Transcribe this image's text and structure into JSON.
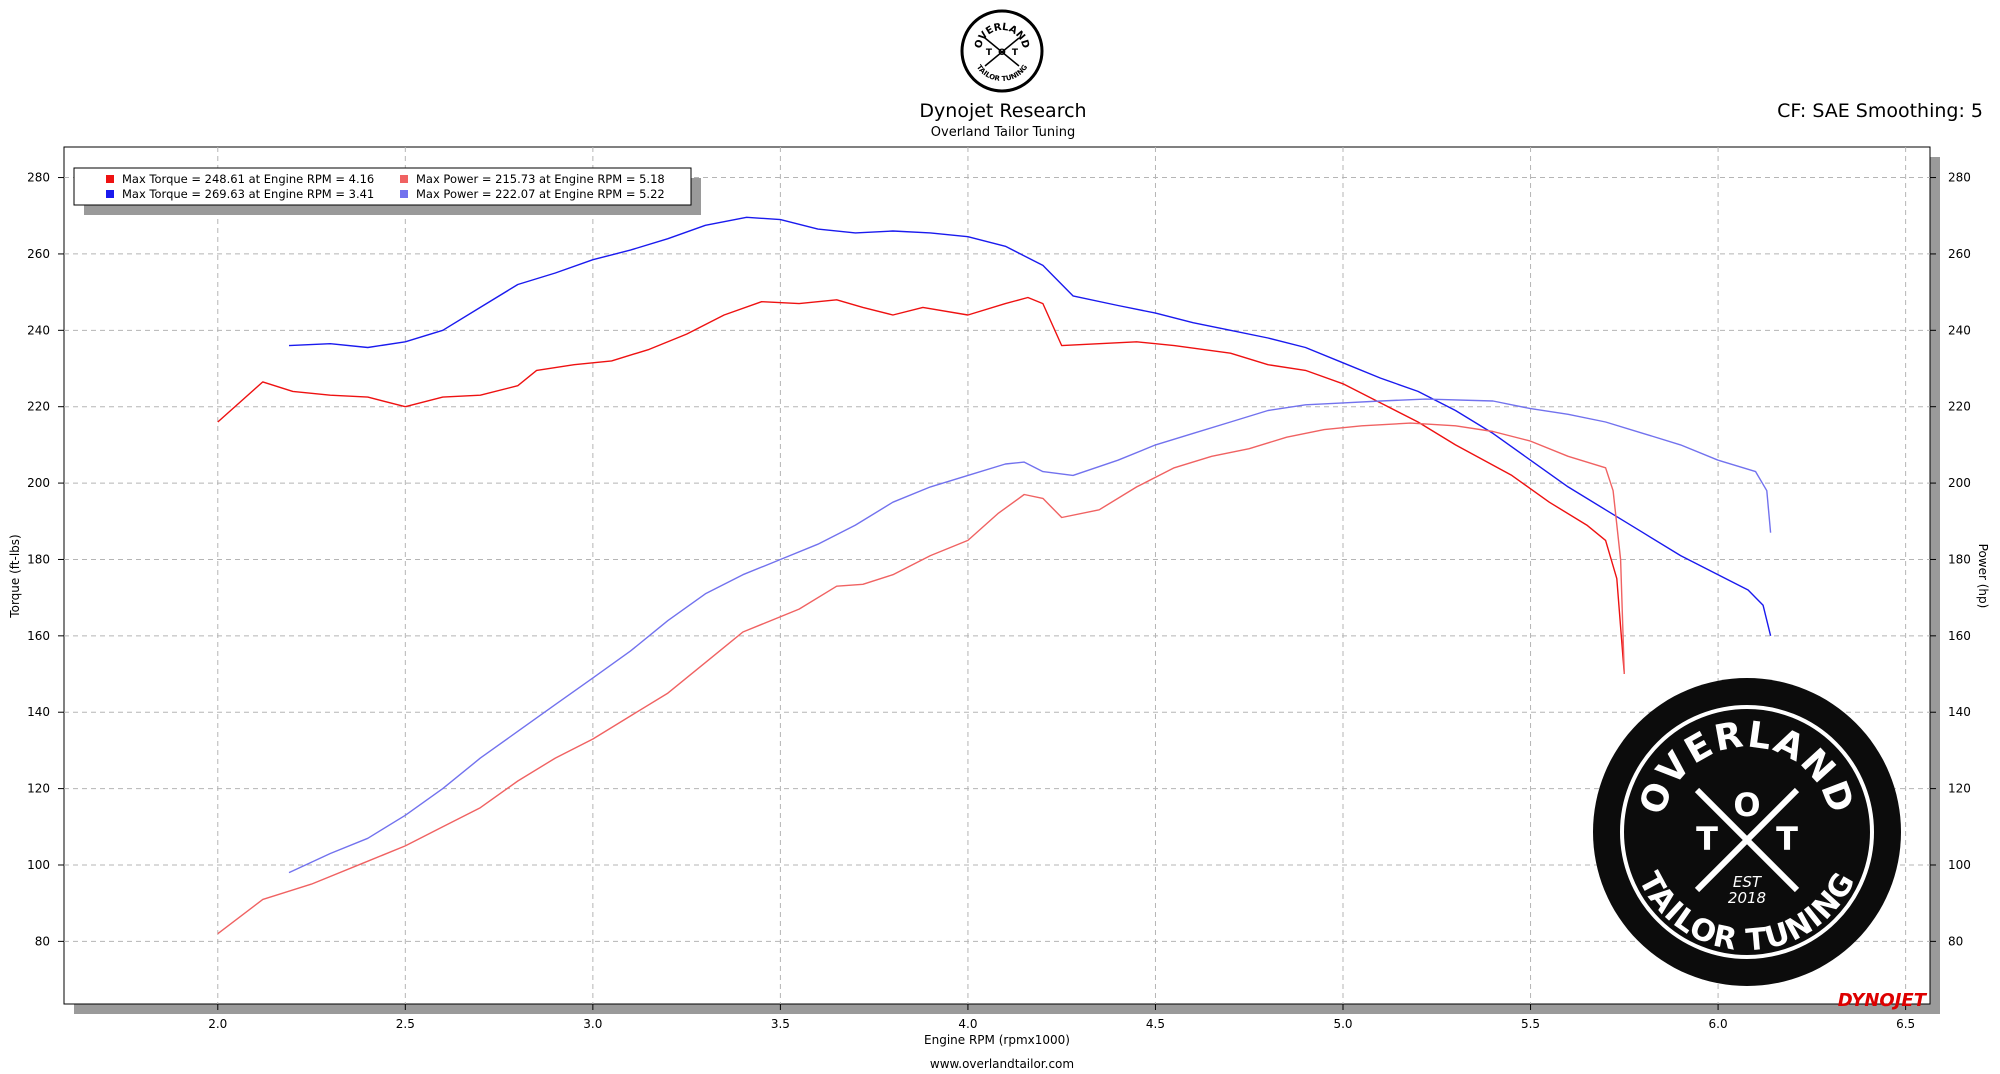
{
  "chart_data": {
    "type": "line",
    "title": "Dynojet Research",
    "subtitle": "Overland Tailor Tuning",
    "corner_note": "CF: SAE Smoothing: 5",
    "x_label": "Engine RPM (rpmx1000)",
    "y_label": "Torque (ft-lbs)",
    "y2_label": "Power (hp)",
    "footer": "www.overlandtailor.com",
    "grid": true,
    "xlim": [
      1.59,
      6.565
    ],
    "xticks": [
      {
        "value": 2,
        "label": "2.0"
      },
      2.5,
      {
        "value": 3,
        "label": "3.0"
      },
      3.5,
      {
        "value": 4,
        "label": "4.0"
      },
      4.5,
      {
        "value": 5,
        "label": "5.0"
      },
      5.5,
      {
        "value": 6,
        "label": "6.0"
      },
      6.5
    ],
    "ylim": [
      63.6,
      288
    ],
    "yticks": [
      80,
      100,
      120,
      140,
      160,
      180,
      200,
      220,
      240,
      260,
      280
    ],
    "y2lim": [
      63.6,
      288
    ],
    "y2ticks": [
      80,
      100,
      120,
      140,
      160,
      180,
      200,
      220,
      240,
      260,
      280
    ],
    "series": [
      {
        "name": "Max Torque = 248.61 at Engine RPM = 4.16",
        "color": "#ee1111",
        "axis": "y",
        "x": [
          2.0,
          2.12,
          2.2,
          2.3,
          2.4,
          2.5,
          2.6,
          2.7,
          2.8,
          2.85,
          2.95,
          3.05,
          3.15,
          3.25,
          3.35,
          3.45,
          3.55,
          3.65,
          3.72,
          3.8,
          3.88,
          4.0,
          4.1,
          4.16,
          4.2,
          4.25,
          4.35,
          4.45,
          4.55,
          4.7,
          4.8,
          4.9,
          5.0,
          5.1,
          5.2,
          5.3,
          5.45,
          5.55,
          5.65,
          5.7,
          5.73,
          5.75
        ],
        "values": [
          216,
          226.5,
          224,
          223,
          222.5,
          220,
          222.5,
          223,
          225.5,
          229.5,
          231,
          232,
          235,
          239,
          244,
          247.5,
          247,
          248,
          246,
          244,
          246,
          244,
          247,
          248.6,
          247,
          236,
          236.5,
          237,
          236,
          234,
          231,
          229.5,
          226,
          221,
          216,
          210,
          202,
          195,
          189,
          185,
          175,
          150
        ]
      },
      {
        "name": "Max Torque = 269.63 at Engine RPM = 3.41",
        "color": "#1a1aee",
        "axis": "y",
        "x": [
          2.19,
          2.3,
          2.4,
          2.5,
          2.6,
          2.7,
          2.8,
          2.9,
          3.0,
          3.1,
          3.2,
          3.3,
          3.41,
          3.5,
          3.6,
          3.7,
          3.8,
          3.9,
          4.0,
          4.1,
          4.2,
          4.28,
          4.4,
          4.5,
          4.6,
          4.7,
          4.8,
          4.9,
          5.0,
          5.1,
          5.2,
          5.3,
          5.4,
          5.5,
          5.6,
          5.7,
          5.8,
          5.9,
          6.0,
          6.08,
          6.12,
          6.14
        ],
        "values": [
          236,
          236.5,
          235.5,
          237,
          240,
          246,
          252,
          255,
          258.5,
          261,
          264,
          267.5,
          269.6,
          269,
          266.5,
          265.5,
          266,
          265.5,
          264.5,
          262,
          257,
          249,
          246.5,
          244.5,
          242,
          240,
          238,
          235.5,
          231.5,
          227.5,
          224,
          219,
          213,
          206,
          199,
          193,
          187,
          181,
          176,
          172,
          168,
          160
        ]
      },
      {
        "name": "Max Power = 215.73 at Engine RPM = 5.18",
        "color": "#f06262",
        "axis": "y2",
        "x": [
          2.0,
          2.12,
          2.25,
          2.4,
          2.5,
          2.6,
          2.7,
          2.8,
          2.9,
          3.0,
          3.1,
          3.2,
          3.3,
          3.4,
          3.55,
          3.65,
          3.72,
          3.8,
          3.9,
          4.0,
          4.08,
          4.15,
          4.2,
          4.25,
          4.35,
          4.45,
          4.55,
          4.65,
          4.75,
          4.85,
          4.95,
          5.05,
          5.18,
          5.3,
          5.4,
          5.5,
          5.6,
          5.7,
          5.72,
          5.74,
          5.75
        ],
        "values": [
          82,
          91,
          95,
          101,
          105,
          110,
          115,
          122,
          128,
          133,
          139,
          145,
          153,
          161,
          167,
          173,
          173.5,
          176,
          181,
          185,
          192,
          197,
          196,
          191,
          193,
          199,
          204,
          207,
          209,
          212,
          214,
          215,
          215.7,
          215,
          213.5,
          211,
          207,
          204,
          198,
          180,
          150
        ]
      },
      {
        "name": "Max Power = 222.07 at Engine RPM = 5.22",
        "color": "#7272ee",
        "axis": "y2",
        "x": [
          2.19,
          2.3,
          2.4,
          2.5,
          2.6,
          2.7,
          2.8,
          2.9,
          3.0,
          3.1,
          3.2,
          3.3,
          3.4,
          3.5,
          3.6,
          3.7,
          3.8,
          3.9,
          4.0,
          4.1,
          4.15,
          4.2,
          4.28,
          4.4,
          4.5,
          4.6,
          4.7,
          4.8,
          4.9,
          5.0,
          5.1,
          5.22,
          5.4,
          5.5,
          5.6,
          5.7,
          5.8,
          5.9,
          6.0,
          6.1,
          6.13,
          6.14
        ],
        "values": [
          98,
          103,
          107,
          113,
          120,
          128,
          135,
          142,
          149,
          156,
          164,
          171,
          176,
          180,
          184,
          189,
          195,
          199,
          202,
          205,
          205.5,
          203,
          202,
          206,
          210,
          213,
          216,
          219,
          220.5,
          221,
          221.5,
          222,
          221.5,
          219.5,
          218,
          216,
          213,
          210,
          206,
          203,
          198,
          187
        ]
      }
    ]
  },
  "logo": {
    "ring_top": "OVERLAND",
    "letters": [
      "T",
      "O",
      "T"
    ],
    "est": "EST",
    "year": "2018",
    "ring_bottom": "TAILOR TUNING",
    "brand": "DYNOJET"
  }
}
